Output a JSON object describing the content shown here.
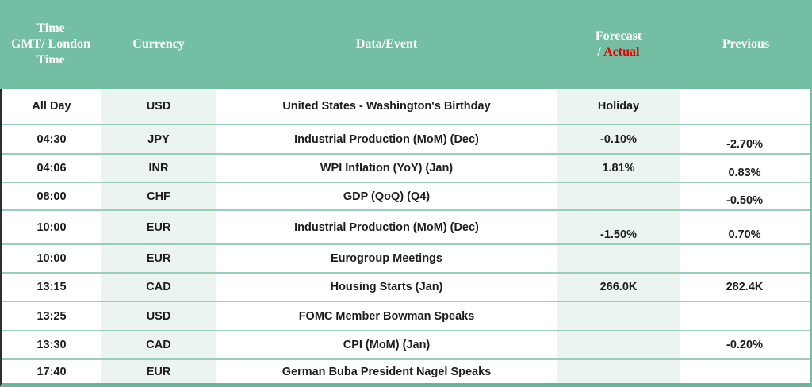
{
  "table": {
    "header": {
      "time_lines": [
        "Time",
        "GMT/ London",
        "Time"
      ],
      "currency": "Currency",
      "event": "Data/Event",
      "forecast_line1": "Forecast",
      "forecast_prefix": "/ ",
      "forecast_actual": "Actual",
      "previous": "Previous"
    },
    "rows": [
      {
        "time": "All Day",
        "currency": "USD",
        "event": "United States - Washington's Birthday",
        "forecast": "Holiday",
        "previous": "",
        "forecast_pos": "center",
        "previous_pos": "center"
      },
      {
        "time": "04:30",
        "currency": "JPY",
        "event": "Industrial Production (MoM) (Dec)",
        "forecast": "-0.10%",
        "previous": "-2.70%",
        "forecast_pos": "center",
        "previous_pos": "low"
      },
      {
        "time": "04:06",
        "currency": "INR",
        "event": "WPI Inflation (YoY) (Jan)",
        "forecast": "1.81%",
        "previous": "0.83%",
        "forecast_pos": "center",
        "previous_pos": "low"
      },
      {
        "time": "08:00",
        "currency": "CHF",
        "event": "GDP (QoQ) (Q4)",
        "forecast": "",
        "previous": "-0.50%",
        "forecast_pos": "center",
        "previous_pos": "low"
      },
      {
        "time": "10:00",
        "currency": "EUR",
        "event": "Industrial Production (MoM) (Dec)",
        "forecast": "-1.50%",
        "previous": "0.70%",
        "forecast_pos": "low",
        "previous_pos": "low"
      },
      {
        "time": "10:00",
        "currency": "EUR",
        "event": "Eurogroup Meetings",
        "forecast": "",
        "previous": "",
        "forecast_pos": "center",
        "previous_pos": "center"
      },
      {
        "time": "13:15",
        "currency": "CAD",
        "event": "Housing Starts (Jan)",
        "forecast": "266.0K",
        "previous": "282.4K",
        "forecast_pos": "center",
        "previous_pos": "center"
      },
      {
        "time": "13:25",
        "currency": "USD",
        "event": "FOMC Member Bowman Speaks",
        "forecast": "",
        "previous": "",
        "forecast_pos": "center",
        "previous_pos": "center"
      },
      {
        "time": "13:30",
        "currency": "CAD",
        "event": "CPI (MoM) (Jan)",
        "forecast": "",
        "previous": "-0.20%",
        "forecast_pos": "center",
        "previous_pos": "center"
      },
      {
        "time": "17:40",
        "currency": "EUR",
        "event": "German Buba President Nagel Speaks",
        "forecast": "",
        "previous": "",
        "forecast_pos": "center",
        "previous_pos": "center"
      }
    ],
    "colors": {
      "header_green": "#74BEA4",
      "column_tint": "#ECF4EF",
      "row_divider": "#9CCDB9",
      "actual_red": "#E00000",
      "bottom_border": "#69B69C",
      "left_border": "#2E2E2E",
      "body_text": "#1C1C1C"
    }
  }
}
